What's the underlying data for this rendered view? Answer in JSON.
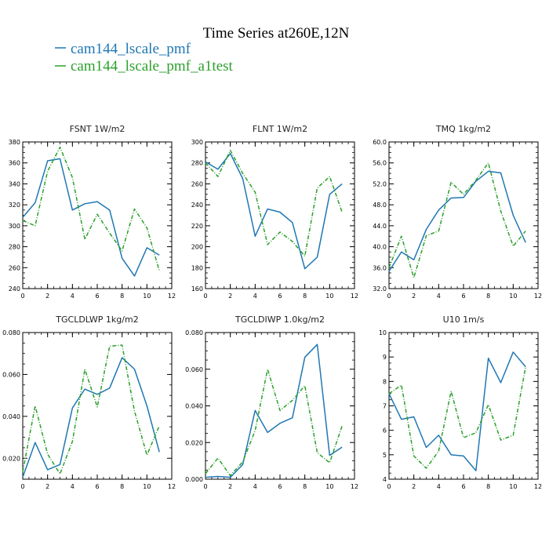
{
  "figure": {
    "title": "Time Series at260E,12N",
    "legend": [
      {
        "label": "cam144_lscale_pmf",
        "color": "#1f77b4"
      },
      {
        "label": "cam144_lscale_pmf_a1test",
        "color": "#2ca02c"
      }
    ]
  },
  "chart_data": [
    {
      "type": "line",
      "title": "FSNT  1W/m2",
      "xlim": [
        0,
        12
      ],
      "ylim": [
        240,
        380
      ],
      "x_ticks": [
        0,
        2,
        4,
        6,
        8,
        10,
        12
      ],
      "y_ticks": [
        240,
        260,
        280,
        300,
        320,
        340,
        360,
        380
      ],
      "y_tick_labels": [
        "240",
        "260",
        "280",
        "300",
        "320",
        "340",
        "360",
        "380"
      ],
      "x": [
        0,
        1,
        2,
        3,
        4,
        5,
        6,
        7,
        8,
        9,
        10,
        11
      ],
      "series": [
        {
          "name": "cam144_lscale_pmf",
          "color": "#1f77b4",
          "dash": "solid",
          "values": [
            308,
            322,
            362,
            364,
            315,
            321,
            323,
            315,
            269,
            252,
            279,
            272
          ]
        },
        {
          "name": "cam144_lscale_pmf_a1test",
          "color": "#2ca02c",
          "dash": "dashed",
          "values": [
            305,
            300,
            352,
            375,
            346,
            287,
            311,
            293,
            276,
            316,
            298,
            257
          ]
        }
      ]
    },
    {
      "type": "line",
      "title": "FLNT  1W/m2",
      "xlim": [
        0,
        12
      ],
      "ylim": [
        160,
        300
      ],
      "x_ticks": [
        0,
        2,
        4,
        6,
        8,
        10,
        12
      ],
      "y_ticks": [
        160,
        180,
        200,
        220,
        240,
        260,
        280,
        300
      ],
      "y_tick_labels": [
        "160",
        "180",
        "200",
        "220",
        "240",
        "260",
        "280",
        "300"
      ],
      "x": [
        0,
        1,
        2,
        3,
        4,
        5,
        6,
        7,
        8,
        9,
        10,
        11
      ],
      "series": [
        {
          "name": "cam144_lscale_pmf",
          "color": "#1f77b4",
          "dash": "solid",
          "values": [
            281,
            274,
            289,
            265,
            210,
            236,
            233,
            223,
            179,
            190,
            250,
            260
          ]
        },
        {
          "name": "cam144_lscale_pmf_a1test",
          "color": "#2ca02c",
          "dash": "dashed",
          "values": [
            280,
            267,
            292,
            270,
            252,
            202,
            214,
            205,
            191,
            256,
            267,
            233
          ]
        }
      ]
    },
    {
      "type": "line",
      "title": "TMQ  1kg/m2",
      "xlim": [
        0,
        12
      ],
      "ylim": [
        32,
        60
      ],
      "x_ticks": [
        0,
        2,
        4,
        6,
        8,
        10,
        12
      ],
      "y_ticks": [
        32,
        36,
        40,
        44,
        48,
        52,
        56,
        60
      ],
      "y_tick_labels": [
        "32.0",
        "36.0",
        "40.0",
        "44.0",
        "48.0",
        "52.0",
        "56.0",
        "60.0"
      ],
      "x": [
        0,
        1,
        2,
        3,
        4,
        5,
        6,
        7,
        8,
        9,
        10,
        11
      ],
      "series": [
        {
          "name": "cam144_lscale_pmf",
          "color": "#1f77b4",
          "dash": "solid",
          "values": [
            35.3,
            39.0,
            37.5,
            43.3,
            47.0,
            49.3,
            49.4,
            52.5,
            54.4,
            54.1,
            46.0,
            40.8
          ]
        },
        {
          "name": "cam144_lscale_pmf_a1test",
          "color": "#2ca02c",
          "dash": "dashed",
          "values": [
            36.0,
            42.0,
            34.1,
            42.1,
            43.0,
            52.3,
            50.0,
            52.7,
            56.0,
            46.8,
            40.1,
            43.0
          ]
        }
      ]
    },
    {
      "type": "line",
      "title": "TGCLDLWP  1kg/m2",
      "xlim": [
        0,
        12
      ],
      "ylim": [
        0.01,
        0.08
      ],
      "x_ticks": [
        0,
        2,
        4,
        6,
        8,
        10,
        12
      ],
      "y_ticks": [
        0.02,
        0.04,
        0.06,
        0.08
      ],
      "y_tick_labels": [
        "0.020",
        "0.040",
        "0.060",
        "0.080"
      ],
      "x": [
        0,
        1,
        2,
        3,
        4,
        5,
        6,
        7,
        8,
        9,
        10,
        11
      ],
      "series": [
        {
          "name": "cam144_lscale_pmf",
          "color": "#1f77b4",
          "dash": "solid",
          "values": [
            0.011,
            0.0275,
            0.0145,
            0.017,
            0.044,
            0.053,
            0.0505,
            0.0535,
            0.068,
            0.0625,
            0.045,
            0.023
          ]
        },
        {
          "name": "cam144_lscale_pmf_a1test",
          "color": "#2ca02c",
          "dash": "dashed",
          "values": [
            0.0135,
            0.045,
            0.022,
            0.0125,
            0.028,
            0.0625,
            0.0445,
            0.0735,
            0.074,
            0.0425,
            0.0215,
            0.0355
          ]
        }
      ]
    },
    {
      "type": "line",
      "title": "TGCLDIWP  1.0kg/m2",
      "xlim": [
        0,
        12
      ],
      "ylim": [
        0.0,
        0.08
      ],
      "x_ticks": [
        0,
        2,
        4,
        6,
        8,
        10,
        12
      ],
      "y_ticks": [
        0.0,
        0.02,
        0.04,
        0.06,
        0.08
      ],
      "y_tick_labels": [
        "0.000",
        "0.020",
        "0.040",
        "0.060",
        "0.080"
      ],
      "x": [
        0,
        1,
        2,
        3,
        4,
        5,
        6,
        7,
        8,
        9,
        10,
        11
      ],
      "series": [
        {
          "name": "cam144_lscale_pmf",
          "color": "#1f77b4",
          "dash": "solid",
          "values": [
            0.001,
            0.0015,
            0.001,
            0.008,
            0.0375,
            0.0255,
            0.0305,
            0.0335,
            0.0665,
            0.0735,
            0.013,
            0.0175
          ]
        },
        {
          "name": "cam144_lscale_pmf_a1test",
          "color": "#2ca02c",
          "dash": "dashed",
          "values": [
            0.003,
            0.0115,
            0.002,
            0.0095,
            0.0265,
            0.06,
            0.0375,
            0.043,
            0.051,
            0.0145,
            0.009,
            0.029
          ]
        }
      ]
    },
    {
      "type": "line",
      "title": "U10  1m/s",
      "xlim": [
        0,
        12
      ],
      "ylim": [
        4,
        10
      ],
      "x_ticks": [
        0,
        2,
        4,
        6,
        8,
        10,
        12
      ],
      "y_ticks": [
        4,
        5,
        6,
        7,
        8,
        9,
        10
      ],
      "y_tick_labels": [
        "4",
        "5",
        "6",
        "7",
        "8",
        "9",
        "10"
      ],
      "x": [
        0,
        1,
        2,
        3,
        4,
        5,
        6,
        7,
        8,
        9,
        10,
        11
      ],
      "series": [
        {
          "name": "cam144_lscale_pmf",
          "color": "#1f77b4",
          "dash": "solid",
          "values": [
            7.5,
            6.45,
            6.55,
            5.3,
            5.8,
            5.0,
            4.95,
            4.35,
            8.95,
            7.95,
            9.2,
            8.6
          ]
        },
        {
          "name": "cam144_lscale_pmf_a1test",
          "color": "#2ca02c",
          "dash": "dashed",
          "values": [
            7.5,
            7.85,
            4.95,
            4.45,
            5.15,
            7.6,
            5.7,
            5.9,
            7.05,
            5.6,
            5.8,
            8.6
          ]
        }
      ]
    }
  ]
}
